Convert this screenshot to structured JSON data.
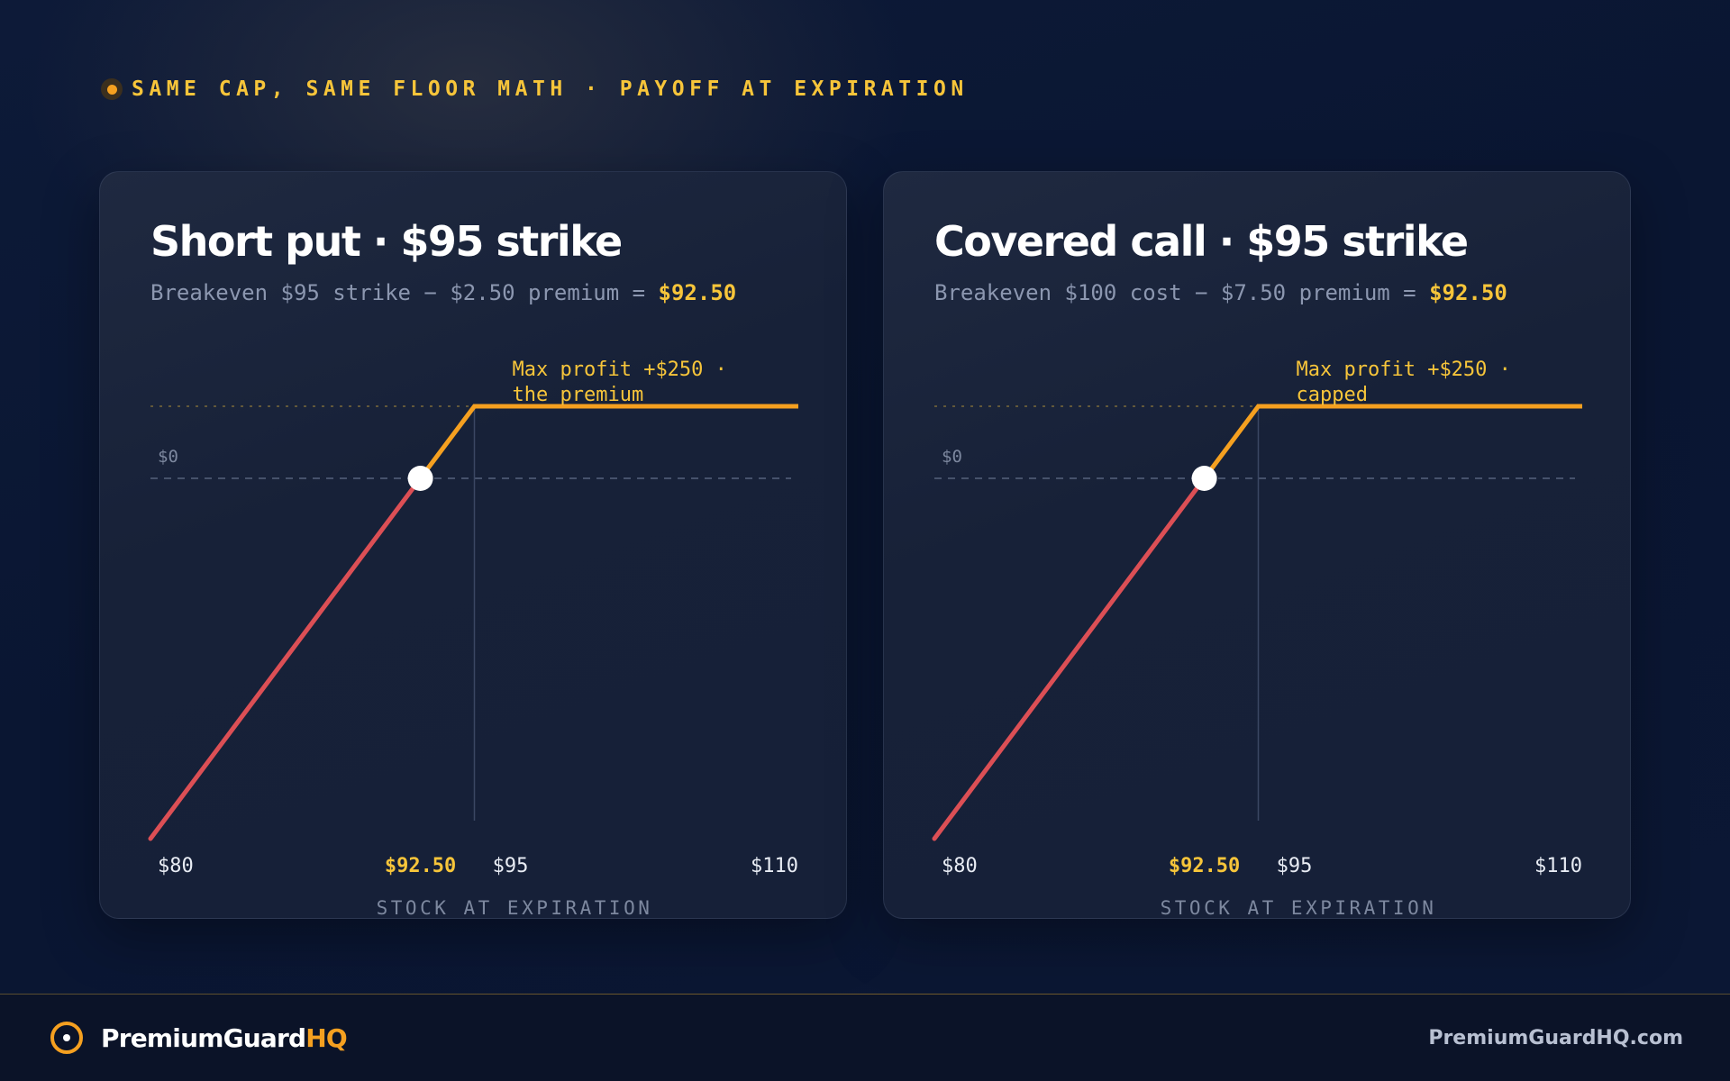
{
  "header": {
    "title": "SAME CAP, SAME FLOOR MATH · PAYOFF AT EXPIRATION"
  },
  "colors": {
    "accent": "#f5a020",
    "highlight": "#f7c53a",
    "loss": "#dc4f55",
    "muted": "#8c97b0"
  },
  "cards": [
    {
      "title": "Short put · $95 strike",
      "subtitle_prefix": "Breakeven $95 strike − $2.50 premium = ",
      "subtitle_result": "$92.50"
    },
    {
      "title": "Covered call · $95 strike",
      "subtitle_prefix": "Breakeven $100 cost − $7.50 premium = ",
      "subtitle_result": "$92.50"
    }
  ],
  "chart_data": [
    {
      "type": "line",
      "title": "Short put · $95 strike",
      "xlabel": "STOCK AT EXPIRATION",
      "ylabel": "",
      "xlim": [
        80,
        110
      ],
      "ylim": [
        -1250,
        250
      ],
      "x_ticks": [
        "$80",
        "$92.50",
        "$95",
        "$110"
      ],
      "y_ticks": [
        "$0"
      ],
      "series": [
        {
          "x": [
            80,
            92.5,
            95,
            110
          ],
          "y": [
            -1250,
            0,
            250,
            250
          ]
        }
      ],
      "breakeven": 92.5,
      "strike": 95,
      "max_profit": 250,
      "annotation": "Max profit +$250 · the premium",
      "grid": false
    },
    {
      "type": "line",
      "title": "Covered call · $95 strike",
      "xlabel": "STOCK AT EXPIRATION",
      "ylabel": "",
      "xlim": [
        80,
        110
      ],
      "ylim": [
        -1250,
        250
      ],
      "x_ticks": [
        "$80",
        "$92.50",
        "$95",
        "$110"
      ],
      "y_ticks": [
        "$0"
      ],
      "series": [
        {
          "x": [
            80,
            92.5,
            95,
            110
          ],
          "y": [
            -1250,
            0,
            250,
            250
          ]
        }
      ],
      "breakeven": 92.5,
      "strike": 95,
      "max_profit": 250,
      "annotation": "Max profit +$250 · capped",
      "grid": false
    }
  ],
  "footer": {
    "brand_main": "PremiumGuard",
    "brand_accent": "HQ",
    "site": "PremiumGuardHQ.com"
  }
}
